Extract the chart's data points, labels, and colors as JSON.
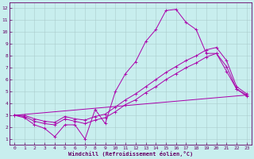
{
  "xlabel": "Windchill (Refroidissement éolien,°C)",
  "background_color": "#c8eeee",
  "grid_color": "#aacccc",
  "line_color": "#aa00aa",
  "xlim": [
    -0.5,
    23.5
  ],
  "ylim": [
    0.5,
    12.5
  ],
  "xticks": [
    0,
    1,
    2,
    3,
    4,
    5,
    6,
    7,
    8,
    9,
    10,
    11,
    12,
    13,
    14,
    15,
    16,
    17,
    18,
    19,
    20,
    21,
    22,
    23
  ],
  "yticks": [
    1,
    2,
    3,
    4,
    5,
    6,
    7,
    8,
    9,
    10,
    11,
    12
  ],
  "line1_x": [
    0,
    1,
    2,
    3,
    4,
    5,
    6,
    7,
    8,
    9,
    10,
    11,
    12,
    13,
    14,
    15,
    16,
    17,
    18,
    19,
    20,
    21,
    22,
    23
  ],
  "line1_y": [
    3.0,
    2.8,
    2.2,
    1.9,
    1.2,
    2.2,
    2.2,
    1.0,
    3.5,
    2.3,
    5.0,
    6.5,
    7.5,
    9.2,
    10.2,
    11.8,
    11.9,
    10.8,
    10.2,
    8.2,
    8.2,
    6.7,
    5.2,
    4.6
  ],
  "line2_x": [
    0,
    1,
    2,
    3,
    4,
    5,
    6,
    7,
    8,
    9,
    10,
    11,
    12,
    13,
    14,
    15,
    16,
    17,
    18,
    19,
    20,
    21,
    22,
    23
  ],
  "line2_y": [
    3.0,
    2.9,
    2.5,
    2.3,
    2.2,
    2.7,
    2.5,
    2.3,
    2.6,
    2.8,
    3.3,
    3.9,
    4.3,
    4.9,
    5.4,
    6.0,
    6.5,
    7.0,
    7.4,
    7.9,
    8.2,
    7.1,
    5.2,
    4.7
  ],
  "line3_x": [
    0,
    1,
    2,
    3,
    4,
    5,
    6,
    7,
    8,
    9,
    10,
    11,
    12,
    13,
    14,
    15,
    16,
    17,
    18,
    19,
    20,
    21,
    22,
    23
  ],
  "line3_y": [
    3.0,
    3.0,
    2.7,
    2.5,
    2.4,
    2.9,
    2.7,
    2.6,
    2.9,
    3.1,
    3.7,
    4.3,
    4.8,
    5.4,
    6.0,
    6.6,
    7.1,
    7.6,
    8.0,
    8.5,
    8.7,
    7.6,
    5.4,
    4.8
  ],
  "line4_x": [
    0,
    23
  ],
  "line4_y": [
    3.0,
    4.7
  ]
}
